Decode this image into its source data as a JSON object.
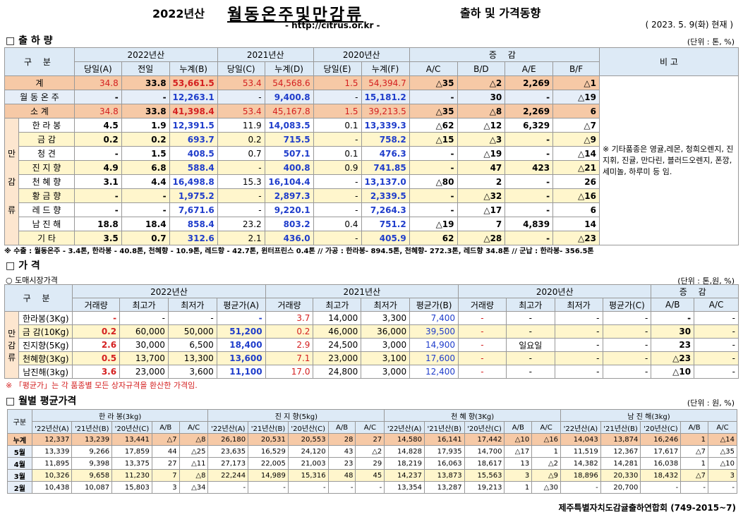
{
  "header": {
    "year": "2022년산",
    "title": "월동온주및만감류",
    "subtitle": "출하 및 가격동향",
    "url": "- http://citrus.or.kr -",
    "date": "( 2023. 5. 9(화) 현재 )"
  },
  "s1": {
    "title": "□ 출 하 량",
    "unit": "(단위 : 톤, %)",
    "h": {
      "gubun": "구 분",
      "y22": "2022년산",
      "y21": "2021년산",
      "y20": "2020년산",
      "inc": "증 감",
      "note": "비 고",
      "c": [
        "당일(A)",
        "전일",
        "누계(B)",
        "당일(C)",
        "누계(D)",
        "당일(E)",
        "누계(F)",
        "A/C",
        "B/D",
        "A/E",
        "B/F"
      ]
    },
    "group_label": [
      "만",
      "감",
      "류"
    ],
    "rows": [
      {
        "label": "계",
        "v": [
          "34.8",
          "33.8",
          "53,661.5",
          "53.4",
          "54,568.6",
          "1.5",
          "54,394.7",
          "△35",
          "△2",
          "2,269",
          "△1"
        ]
      },
      {
        "label": "월 동 온 주",
        "v": [
          "-",
          "-",
          "12,263.1",
          "-",
          "9,400.8",
          "-",
          "15,181.2",
          "-",
          "30",
          "-",
          "△19"
        ]
      },
      {
        "label": "소 계",
        "v": [
          "34.8",
          "33.8",
          "41,398.4",
          "53.4",
          "45,167.8",
          "1.5",
          "39,213.5",
          "△35",
          "△8",
          "2,269",
          "6"
        ]
      },
      {
        "label": "한 라 봉",
        "v": [
          "4.5",
          "1.9",
          "12,391.5",
          "11.9",
          "14,083.5",
          "0.1",
          "13,339.3",
          "△62",
          "△12",
          "6,329",
          "△7"
        ]
      },
      {
        "label": "금 감",
        "v": [
          "0.2",
          "0.2",
          "693.7",
          "0.2",
          "715.5",
          "-",
          "758.2",
          "△15",
          "△3",
          "-",
          "△9"
        ]
      },
      {
        "label": "청 견",
        "v": [
          "-",
          "1.5",
          "408.5",
          "0.7",
          "507.1",
          "0.1",
          "476.3",
          "-",
          "△19",
          "-",
          "△14"
        ]
      },
      {
        "label": "진 지 향",
        "v": [
          "4.9",
          "6.8",
          "588.4",
          "-",
          "400.8",
          "0.9",
          "741.85",
          "-",
          "47",
          "423",
          "△21"
        ]
      },
      {
        "label": "천 혜 향",
        "v": [
          "3.1",
          "4.4",
          "16,498.8",
          "15.3",
          "16,104.4",
          "-",
          "13,137.0",
          "△80",
          "2",
          "-",
          "26"
        ]
      },
      {
        "label": "황 금 향",
        "v": [
          "-",
          "-",
          "1,975.2",
          "-",
          "2,897.3",
          "-",
          "2,339.5",
          "-",
          "△32",
          "-",
          "△16"
        ]
      },
      {
        "label": "레 드 향",
        "v": [
          "-",
          "-",
          "7,671.6",
          "-",
          "9,220.1",
          "-",
          "7,264.3",
          "-",
          "△17",
          "-",
          "6"
        ]
      },
      {
        "label": "남 진 해",
        "v": [
          "18.8",
          "18.4",
          "858.4",
          "23.2",
          "803.2",
          "0.4",
          "751.2",
          "△19",
          "7",
          "4,839",
          "14"
        ]
      },
      {
        "label": "기 타",
        "v": [
          "3.5",
          "0.7",
          "312.6",
          "2.1",
          "436.0",
          "-",
          "405.9",
          "62",
          "△28",
          "-",
          "△23"
        ]
      }
    ],
    "remark": "※ 기타품종은 영귤,레몬, 청희오렌지, 진지휘, 진귤, 만다린, 블러드오렌지, 폰깡,세미놀, 하루미 등 임.",
    "footnote": "※ 수출 : 월동온주 - 3.4톤, 한라봉 - 40.8톤, 천혜향 - 10.9톤, 레드향 - 42.7톤, 윈터프린스 0.4톤 // 가공 : 한라봉- 894.5톤, 천혜향- 272.3톤, 레드향 34.8톤 // 군납 : 한라봉- 356.5톤"
  },
  "s2": {
    "title": "□ 가 격",
    "sub": "○ 도매시장가격",
    "unit": "(단위 : 톤,원, %)",
    "h": {
      "gubun": "구 분",
      "y22": "2022년산",
      "y21": "2021년산",
      "y20": "2020년산",
      "inc": "증 감",
      "c": [
        "거래량",
        "최고가",
        "최저가",
        "평균가(A)",
        "거래량",
        "최고가",
        "최저가",
        "평균가(B)",
        "거래량",
        "최고가",
        "최저가",
        "평균가(C)",
        "A/B",
        "A/C"
      ]
    },
    "group_label": [
      "만",
      "감",
      "류"
    ],
    "rows": [
      {
        "label": "한라봉(3Kg)",
        "v": [
          "-",
          "-",
          "-",
          "-",
          "3.7",
          "14,000",
          "3,300",
          "7,400",
          "-",
          "-",
          "-",
          "-",
          "-",
          "-"
        ]
      },
      {
        "label": "금 감(10Kg)",
        "v": [
          "0.2",
          "60,000",
          "50,000",
          "51,200",
          "0.2",
          "46,000",
          "36,000",
          "39,500",
          "-",
          "-",
          "-",
          "-",
          "30",
          "-"
        ]
      },
      {
        "label": "진지향(5Kg)",
        "v": [
          "2.6",
          "30,000",
          "6,500",
          "18,400",
          "2.9",
          "24,500",
          "3,000",
          "14,900",
          "-",
          "일요일",
          "-",
          "-",
          "23",
          "-"
        ]
      },
      {
        "label": "천혜향(3Kg)",
        "v": [
          "0.5",
          "13,700",
          "13,300",
          "13,600",
          "7.1",
          "23,000",
          "3,100",
          "17,600",
          "-",
          "-",
          "-",
          "-",
          "△23",
          "-"
        ]
      },
      {
        "label": "남진해(3kg)",
        "v": [
          "3.6",
          "23,000",
          "3,600",
          "11,100",
          "17.0",
          "24,800",
          "3,000",
          "12,400",
          "-",
          "-",
          "-",
          "-",
          "△10",
          "-"
        ]
      }
    ],
    "footnote": "※ 「평균가」는 각 품종별 모든 상자규격을 환산한 가격임."
  },
  "s3": {
    "title": "□ 월별 평균가격",
    "unit": "(단위 : 원, %)",
    "h": {
      "gubun": "구분",
      "groups": [
        "한 라 봉(3kg)",
        "진 지 향(5kg)",
        "천 혜 향(3Kg)",
        "남 진 해(3kg)"
      ],
      "c": [
        "'22년산(A)",
        "'21년산(B)",
        "'20년산(C)",
        "A/B",
        "A/C"
      ]
    },
    "rows": [
      {
        "label": "누계",
        "v": [
          "12,337",
          "13,239",
          "13,441",
          "△7",
          "△8",
          "26,180",
          "20,531",
          "20,553",
          "28",
          "27",
          "14,580",
          "16,141",
          "17,442",
          "△10",
          "△16",
          "14,043",
          "13,874",
          "16,246",
          "1",
          "△14"
        ]
      },
      {
        "label": "5월",
        "v": [
          "13,339",
          "9,266",
          "17,859",
          "44",
          "△25",
          "23,635",
          "16,529",
          "24,120",
          "43",
          "△2",
          "14,828",
          "17,935",
          "14,700",
          "△17",
          "1",
          "11,519",
          "12,367",
          "17,617",
          "△7",
          "△35"
        ]
      },
      {
        "label": "4월",
        "v": [
          "11,895",
          "9,398",
          "13,375",
          "27",
          "△11",
          "27,173",
          "22,005",
          "21,003",
          "23",
          "29",
          "18,219",
          "16,063",
          "18,617",
          "13",
          "△2",
          "14,382",
          "14,281",
          "16,038",
          "1",
          "△10"
        ]
      },
      {
        "label": "3월",
        "v": [
          "10,326",
          "9,658",
          "11,230",
          "7",
          "△8",
          "22,244",
          "14,989",
          "15,316",
          "48",
          "45",
          "14,237",
          "13,873",
          "15,563",
          "3",
          "△9",
          "18,896",
          "20,330",
          "18,432",
          "△7",
          "3"
        ]
      },
      {
        "label": "2월",
        "v": [
          "10,438",
          "10,087",
          "15,803",
          "3",
          "△34",
          "-",
          "-",
          "-",
          "-",
          "-",
          "13,354",
          "13,287",
          "19,213",
          "1",
          "△30",
          "-",
          "20,700",
          "-",
          "-",
          "-"
        ]
      }
    ]
  },
  "footer": "제주특별자치도감귤출하연합회 (749-2015~7)"
}
